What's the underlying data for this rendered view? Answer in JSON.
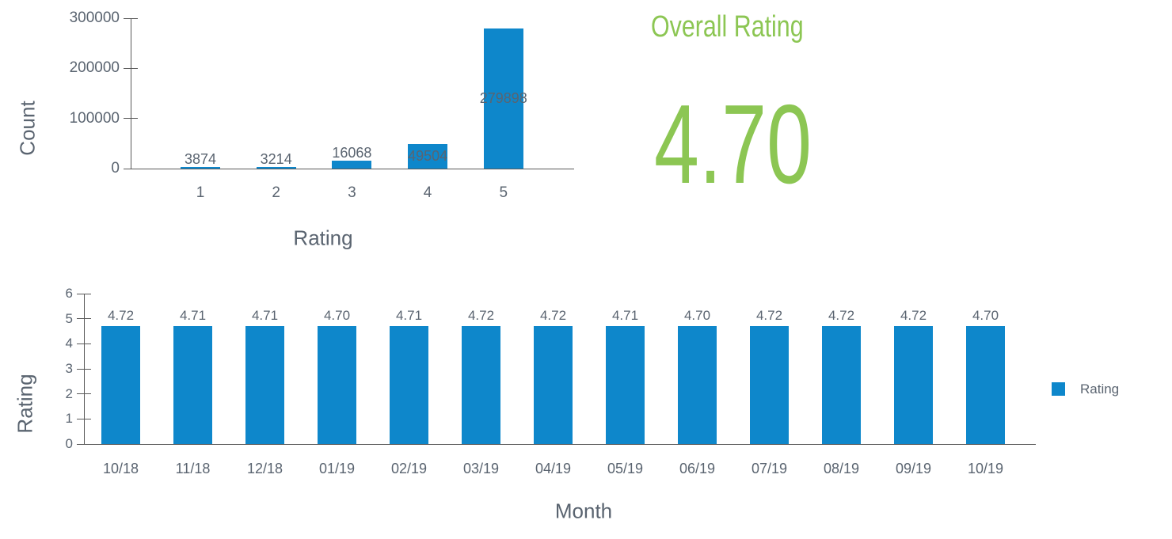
{
  "colors": {
    "bar_blue": "#0e87cb",
    "accent_green": "#8cc653",
    "text_gray": "#5a6470",
    "axis_gray": "#595959"
  },
  "overall": {
    "title": "Overall Rating",
    "value": "4.70"
  },
  "chart_data": [
    {
      "id": "rating-distribution",
      "type": "bar",
      "title": "",
      "xlabel": "Rating",
      "ylabel": "Count",
      "categories": [
        "1",
        "2",
        "3",
        "4",
        "5"
      ],
      "values": [
        3874,
        3214,
        16068,
        49504,
        279898
      ],
      "value_labels": [
        "3874",
        "3214",
        "16068",
        "49504",
        "279898"
      ],
      "ylim": [
        0,
        300000
      ],
      "yticks": [
        0,
        100000,
        200000,
        300000
      ],
      "ytick_labels": [
        "0",
        "100000",
        "200000",
        "300000"
      ],
      "grid": false,
      "legend": null
    },
    {
      "id": "monthly-rating",
      "type": "bar",
      "title": "",
      "xlabel": "Month",
      "ylabel": "Rating",
      "categories": [
        "10/18",
        "11/18",
        "12/18",
        "01/19",
        "02/19",
        "03/19",
        "04/19",
        "05/19",
        "06/19",
        "07/19",
        "08/19",
        "09/19",
        "10/19"
      ],
      "values": [
        4.72,
        4.71,
        4.71,
        4.7,
        4.71,
        4.72,
        4.72,
        4.71,
        4.7,
        4.72,
        4.72,
        4.72,
        4.7
      ],
      "value_labels": [
        "4.72",
        "4.71",
        "4.71",
        "4.70",
        "4.71",
        "4.72",
        "4.72",
        "4.71",
        "4.70",
        "4.72",
        "4.72",
        "4.72",
        "4.70"
      ],
      "ylim": [
        0,
        6
      ],
      "yticks": [
        0,
        1,
        2,
        3,
        4,
        5,
        6
      ],
      "ytick_labels": [
        "0",
        "1",
        "2",
        "3",
        "4",
        "5",
        "6"
      ],
      "grid": false,
      "legend": {
        "label": "Rating",
        "position": "right"
      }
    }
  ]
}
